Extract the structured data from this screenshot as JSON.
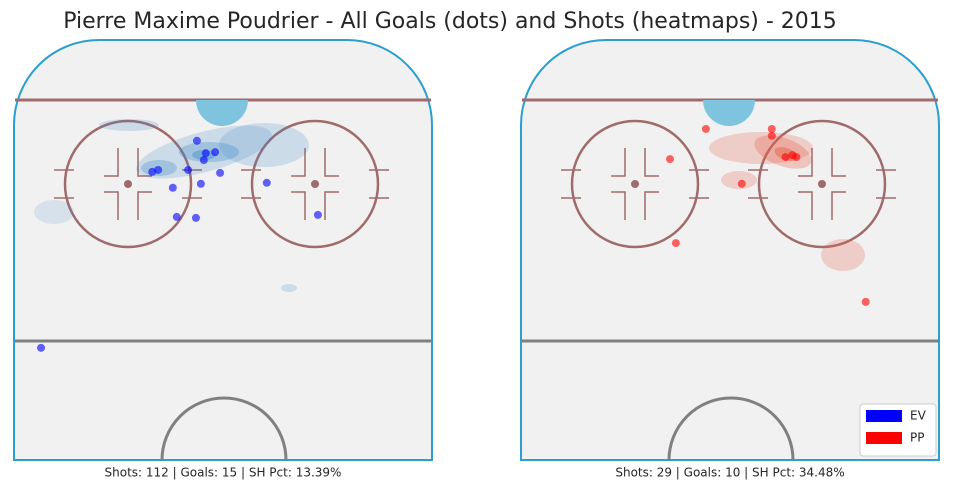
{
  "chart_data": {
    "title": "Pierre Maxime Poudrier - All Goals (dots) and Shots (heatmaps) - 2015",
    "legend": {
      "position": "lower right",
      "entries": [
        {
          "name": "EV",
          "color": "#0000ff"
        },
        {
          "name": "PP",
          "color": "#ff0000"
        }
      ]
    },
    "panels": [
      {
        "type": "scatter",
        "footer": "Shots: 112 | Goals: 15 | SH Pct: 13.39%",
        "color": "#0000ff",
        "xlim": [
          -42.5,
          42.5
        ],
        "ylim": [
          0,
          85
        ],
        "x": [
          -5.3,
          -1.6,
          -3.5,
          -3.9,
          -13.2,
          -14.4,
          -7.1,
          -10.2,
          -4.5,
          -0.6,
          8.9,
          -5.5,
          -9.4,
          19.3,
          -37.0
        ],
        "y": [
          64.6,
          62.3,
          62.1,
          60.7,
          58.7,
          58.3,
          58.7,
          55.1,
          55.9,
          58.1,
          56.1,
          49.0,
          49.2,
          49.6,
          22.7
        ]
      },
      {
        "type": "scatter",
        "footer": "Shots: 29 | Goals: 10 | SH Pct: 34.48%",
        "color": "#ff0000",
        "xlim": [
          -42.5,
          42.5
        ],
        "ylim": [
          0,
          85
        ],
        "x": [
          -4.9,
          -12.2,
          8.5,
          8.5,
          2.4,
          11.3,
          -11.0,
          27.6,
          12.7,
          13.5
        ],
        "y": [
          67.0,
          60.9,
          67.0,
          65.6,
          55.9,
          61.3,
          43.9,
          32.0,
          61.7,
          61.3
        ]
      }
    ]
  }
}
